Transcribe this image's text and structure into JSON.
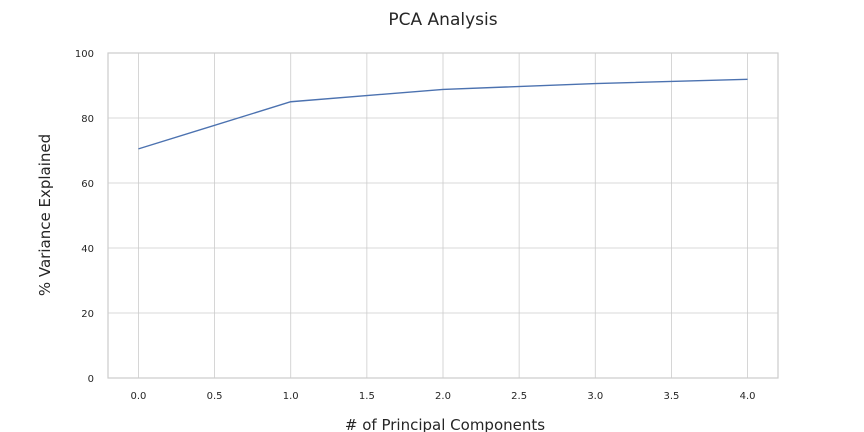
{
  "chart_data": {
    "type": "line",
    "title": "PCA Analysis",
    "xlabel": "# of Principal Components",
    "ylabel": "% Variance Explained",
    "xlim": [
      -0.2,
      4.2
    ],
    "ylim": [
      0,
      100
    ],
    "x_ticks": [
      "0.0",
      "0.5",
      "1.0",
      "1.5",
      "2.0",
      "2.5",
      "3.0",
      "3.5",
      "4.0"
    ],
    "y_ticks": [
      "0",
      "20",
      "40",
      "60",
      "80",
      "100"
    ],
    "grid": true,
    "series": [
      {
        "x": [
          0,
          1,
          2,
          3,
          4
        ],
        "values": [
          70.5,
          85.0,
          88.8,
          90.6,
          91.9
        ]
      }
    ],
    "colors": {
      "line": "#4c72b0",
      "grid": "#cccccc",
      "text": "#262626"
    }
  }
}
